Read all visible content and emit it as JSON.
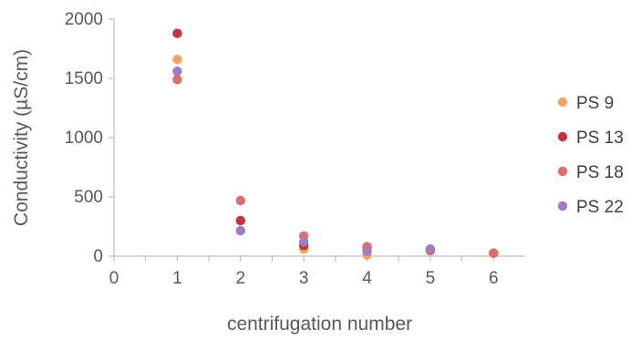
{
  "chart_data": {
    "type": "scatter",
    "title": "",
    "xlabel": "centrifugation number",
    "ylabel": "Conductivity (µS/cm)",
    "xlim": [
      0,
      6.5
    ],
    "ylim": [
      0,
      2000
    ],
    "x_ticks": [
      "0",
      "1",
      "2",
      "3",
      "4",
      "5",
      "6"
    ],
    "y_ticks": [
      "0",
      "500",
      "1000",
      "1500",
      "2000"
    ],
    "grid": false,
    "legend_position": "right",
    "series": [
      {
        "name": "PS 9",
        "color": "#f4a460",
        "points": [
          [
            1,
            1660
          ],
          [
            2,
            300
          ],
          [
            3,
            60
          ],
          [
            4,
            10
          ],
          [
            5,
            55
          ]
        ]
      },
      {
        "name": "PS 13",
        "color": "#c8323c",
        "points": [
          [
            1,
            1880
          ],
          [
            2,
            300
          ],
          [
            3,
            90
          ],
          [
            4,
            70
          ],
          [
            5,
            55
          ],
          [
            6,
            25
          ]
        ]
      },
      {
        "name": "PS 18",
        "color": "#e06c6c",
        "points": [
          [
            1,
            1490
          ],
          [
            2,
            470
          ],
          [
            3,
            170
          ],
          [
            4,
            80
          ],
          [
            5,
            45
          ],
          [
            6,
            25
          ]
        ]
      },
      {
        "name": "PS 22",
        "color": "#a07cc0",
        "points": [
          [
            1,
            1560
          ],
          [
            2,
            215
          ],
          [
            3,
            120
          ],
          [
            4,
            40
          ],
          [
            5,
            60
          ]
        ]
      }
    ]
  }
}
